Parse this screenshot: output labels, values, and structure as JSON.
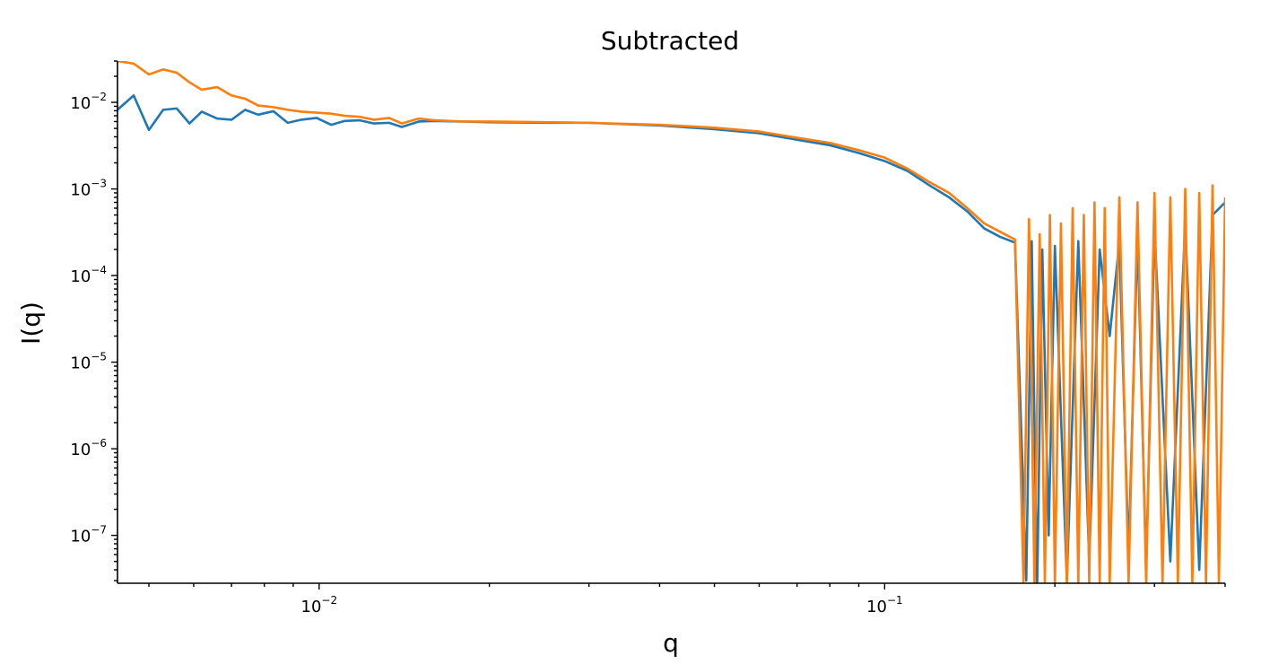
{
  "chart_data": {
    "type": "line",
    "title": "Subtracted",
    "xlabel": "q",
    "ylabel": "I(q)",
    "xscale": "log",
    "yscale": "log",
    "xlim": [
      0.0044,
      0.4
    ],
    "ylim": [
      2.8e-08,
      0.03
    ],
    "grid": false,
    "x_ticks": [
      {
        "value": 0.01,
        "base": "10",
        "exp": "−2"
      },
      {
        "value": 0.1,
        "base": "10",
        "exp": "−1"
      }
    ],
    "y_ticks": [
      {
        "value": 0.01,
        "base": "10",
        "exp": "−2"
      },
      {
        "value": 0.001,
        "base": "10",
        "exp": "−3"
      },
      {
        "value": 0.0001,
        "base": "10",
        "exp": "−4"
      },
      {
        "value": 1e-05,
        "base": "10",
        "exp": "−5"
      },
      {
        "value": 1e-06,
        "base": "10",
        "exp": "−6"
      },
      {
        "value": 1e-07,
        "base": "10",
        "exp": "−7"
      }
    ],
    "series": [
      {
        "color": "#1f77b4",
        "x": [
          0.0044,
          0.0047,
          0.005,
          0.0053,
          0.0056,
          0.0059,
          0.0062,
          0.0066,
          0.007,
          0.0074,
          0.0078,
          0.0083,
          0.0088,
          0.0093,
          0.0099,
          0.0105,
          0.0111,
          0.0118,
          0.0125,
          0.0133,
          0.014,
          0.015,
          0.016,
          0.018,
          0.02,
          0.025,
          0.03,
          0.04,
          0.05,
          0.06,
          0.07,
          0.08,
          0.09,
          0.1,
          0.11,
          0.12,
          0.13,
          0.14,
          0.15,
          0.16,
          0.17,
          0.178,
          0.182,
          0.186,
          0.19,
          0.195,
          0.2,
          0.21,
          0.22,
          0.23,
          0.24,
          0.25,
          0.26,
          0.27,
          0.28,
          0.29,
          0.3,
          0.32,
          0.34,
          0.36,
          0.38,
          0.4
        ],
        "y": [
          0.0082,
          0.012,
          0.0048,
          0.0082,
          0.0085,
          0.0057,
          0.0078,
          0.0065,
          0.0063,
          0.0082,
          0.0072,
          0.0079,
          0.0058,
          0.0063,
          0.0066,
          0.0055,
          0.0061,
          0.0062,
          0.0057,
          0.0058,
          0.0052,
          0.006,
          0.0061,
          0.006,
          0.0059,
          0.0058,
          0.0058,
          0.0054,
          0.0049,
          0.0044,
          0.0037,
          0.0032,
          0.0026,
          0.0021,
          0.0016,
          0.0011,
          0.0008,
          0.00055,
          0.00035,
          0.00028,
          0.00024,
          3e-08,
          0.00025,
          2e-08,
          0.0002,
          1e-07,
          0.00022,
          3e-08,
          0.00025,
          5e-08,
          0.0002,
          2e-05,
          0.00024,
          6e-08,
          0.0003,
          4e-08,
          0.00035,
          5e-08,
          0.0004,
          4e-08,
          0.0005,
          0.0007
        ]
      },
      {
        "color": "#ff7f0e",
        "x": [
          0.0044,
          0.0047,
          0.005,
          0.0053,
          0.0056,
          0.0059,
          0.0062,
          0.0066,
          0.007,
          0.0074,
          0.0078,
          0.0083,
          0.0088,
          0.0093,
          0.0099,
          0.0105,
          0.0111,
          0.0118,
          0.0125,
          0.0133,
          0.014,
          0.015,
          0.016,
          0.018,
          0.02,
          0.025,
          0.03,
          0.04,
          0.05,
          0.06,
          0.07,
          0.08,
          0.09,
          0.1,
          0.11,
          0.12,
          0.13,
          0.14,
          0.15,
          0.16,
          0.17,
          0.176,
          0.18,
          0.184,
          0.188,
          0.192,
          0.196,
          0.2,
          0.205,
          0.21,
          0.215,
          0.22,
          0.225,
          0.23,
          0.235,
          0.24,
          0.245,
          0.25,
          0.26,
          0.27,
          0.28,
          0.29,
          0.3,
          0.31,
          0.32,
          0.33,
          0.34,
          0.35,
          0.36,
          0.37,
          0.38,
          0.39,
          0.4
        ],
        "y": [
          0.03,
          0.028,
          0.021,
          0.024,
          0.022,
          0.017,
          0.014,
          0.015,
          0.012,
          0.011,
          0.0092,
          0.0088,
          0.0082,
          0.0078,
          0.0076,
          0.0074,
          0.007,
          0.0068,
          0.0063,
          0.0066,
          0.0057,
          0.0065,
          0.0062,
          0.006,
          0.006,
          0.0059,
          0.0058,
          0.0055,
          0.0051,
          0.0046,
          0.0039,
          0.0034,
          0.0028,
          0.0023,
          0.0017,
          0.0012,
          0.0009,
          0.0006,
          0.0004,
          0.00032,
          0.00026,
          2.8e-08,
          0.00045,
          2.8e-08,
          0.0003,
          2.8e-08,
          0.0005,
          2.8e-08,
          0.0004,
          2.8e-08,
          0.0006,
          2.8e-08,
          0.0005,
          2.8e-08,
          0.0007,
          2.8e-08,
          0.0006,
          2.8e-08,
          0.0008,
          2.8e-08,
          0.0007,
          2.8e-08,
          0.0009,
          2.8e-08,
          0.0008,
          2.8e-08,
          0.001,
          2.8e-08,
          0.0009,
          2.8e-08,
          0.0011,
          2.8e-08,
          0.0008
        ]
      }
    ]
  }
}
